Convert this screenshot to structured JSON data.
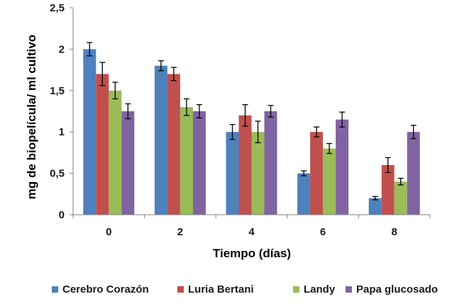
{
  "chart_data": {
    "type": "bar",
    "title": "",
    "xlabel": "Tiempo (días)",
    "ylabel": "mg de biopelícula/ ml cultivo",
    "categories": [
      "0",
      "2",
      "4",
      "6",
      "8"
    ],
    "ylim": [
      0,
      2.5
    ],
    "yticks": [
      "0",
      "0,5",
      "1",
      "1,5",
      "2",
      "2,5"
    ],
    "ytick_values": [
      0,
      0.5,
      1,
      1.5,
      2,
      2.5
    ],
    "grid": false,
    "legend_position": "bottom",
    "series": [
      {
        "name": "Cerebro Corazón",
        "color": "#4f81bd",
        "values": [
          2.0,
          1.8,
          1.0,
          0.5,
          0.2
        ],
        "errors": [
          0.08,
          0.06,
          0.09,
          0.03,
          0.02
        ]
      },
      {
        "name": "Luria  Bertani",
        "color": "#c0504d",
        "values": [
          1.7,
          1.7,
          1.2,
          1.0,
          0.6
        ],
        "errors": [
          0.14,
          0.08,
          0.13,
          0.06,
          0.09
        ]
      },
      {
        "name": "Landy",
        "color": "#9bbb59",
        "values": [
          1.5,
          1.3,
          1.0,
          0.8,
          0.4
        ],
        "errors": [
          0.1,
          0.1,
          0.13,
          0.06,
          0.04
        ]
      },
      {
        "name": "Papa glucosado",
        "color": "#8064a2",
        "values": [
          1.25,
          1.25,
          1.25,
          1.15,
          1.0
        ],
        "errors": [
          0.09,
          0.08,
          0.07,
          0.09,
          0.08
        ]
      }
    ]
  }
}
